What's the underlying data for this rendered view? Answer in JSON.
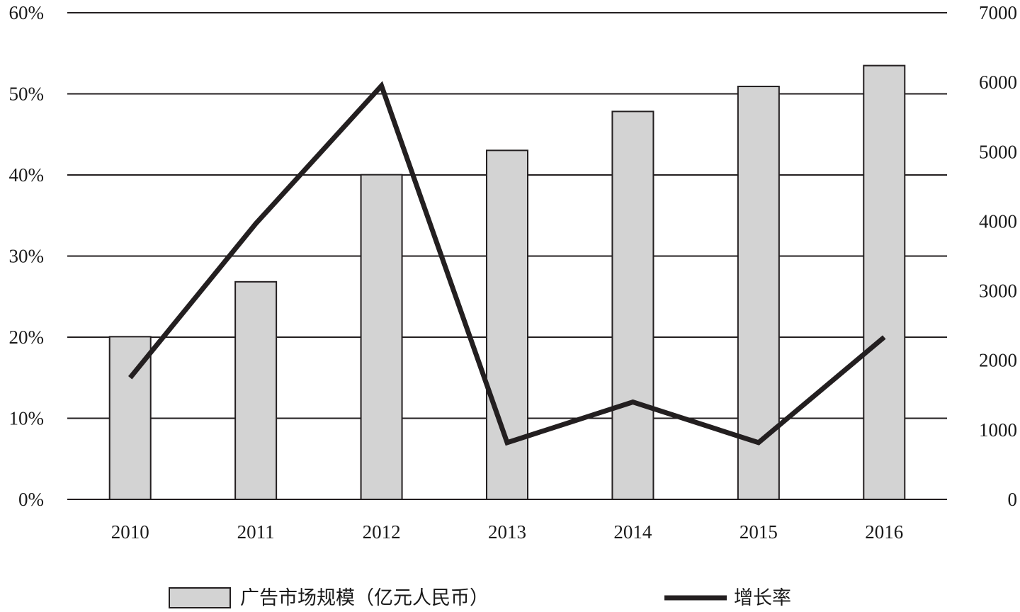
{
  "chart_data": {
    "type": "bar",
    "categories": [
      "2010",
      "2011",
      "2012",
      "2013",
      "2014",
      "2015",
      "2016"
    ],
    "series": [
      {
        "name": "广告市场规模（亿元人民币）",
        "type": "bar",
        "axis": "right",
        "values": [
          2340,
          3130,
          4670,
          5020,
          5580,
          5940,
          6240
        ],
        "color": "#d3d3d3"
      },
      {
        "name": "增长率",
        "type": "line",
        "axis": "left",
        "values": [
          15,
          34,
          51,
          7,
          12,
          7,
          20
        ],
        "color": "#231f20"
      }
    ],
    "y_left": {
      "ticks": [
        "0%",
        "10%",
        "20%",
        "30%",
        "40%",
        "50%",
        "60%"
      ],
      "ylim": [
        0,
        60
      ]
    },
    "y_right": {
      "ticks": [
        "0",
        "1000",
        "2000",
        "3000",
        "4000",
        "5000",
        "6000",
        "7000"
      ],
      "ylim": [
        0,
        7000
      ]
    },
    "grid": true,
    "legend_position": "bottom"
  }
}
